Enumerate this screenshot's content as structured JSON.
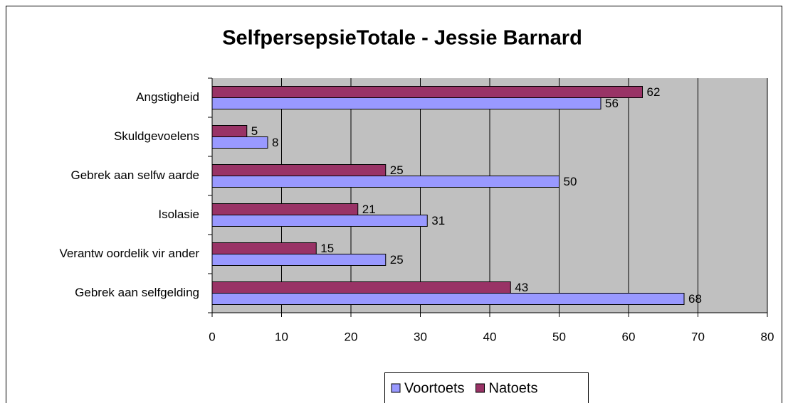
{
  "chart_data": {
    "type": "barh",
    "title": "SelfpersepsieTotale - Jessie Barnard",
    "categories": [
      "Angstigheid",
      "Skuldgevoelens",
      "Gebrek aan selfw aarde",
      "Isolasie",
      "Verantw oordelik vir ander",
      "Gebrek aan selfgelding"
    ],
    "series": [
      {
        "name": "Voortoets",
        "color": "#9999ff",
        "values": [
          56,
          8,
          50,
          31,
          25,
          68
        ]
      },
      {
        "name": "Natoets",
        "color": "#993366",
        "values": [
          62,
          5,
          25,
          21,
          15,
          43
        ]
      }
    ],
    "xlim": [
      0,
      80
    ],
    "xticks": [
      0,
      10,
      20,
      30,
      40,
      50,
      60,
      70,
      80
    ],
    "grid": true,
    "legend": "bottom"
  }
}
